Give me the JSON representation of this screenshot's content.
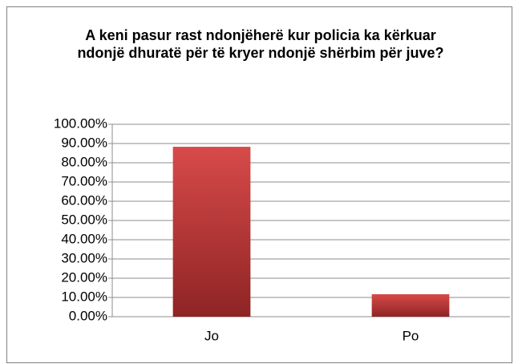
{
  "chart_data": {
    "type": "bar",
    "title": "A keni pasur rast ndonjëherë kur policia ka kërkuar ndonjë dhuratë për të kryer ndonjë shërbim për juve?",
    "categories": [
      "Jo",
      "Po"
    ],
    "values": [
      88.3,
      11.7
    ],
    "color": "#c0393b",
    "ylim": [
      0,
      100
    ],
    "yticks": [
      {
        "value": 0,
        "label": "0.00%"
      },
      {
        "value": 10,
        "label": "10.00%"
      },
      {
        "value": 20,
        "label": "20.00%"
      },
      {
        "value": 30,
        "label": "30.00%"
      },
      {
        "value": 40,
        "label": "40.00%"
      },
      {
        "value": 50,
        "label": "50.00%"
      },
      {
        "value": 60,
        "label": "60.00%"
      },
      {
        "value": 70,
        "label": "70.00%"
      },
      {
        "value": 80,
        "label": "80.00%"
      },
      {
        "value": 90,
        "label": "90.00%"
      },
      {
        "value": 100,
        "label": "100.00%"
      }
    ],
    "grid": true
  }
}
